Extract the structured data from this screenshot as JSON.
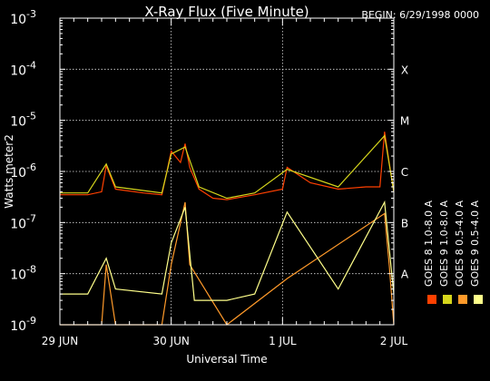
{
  "colors": {
    "background": "#000000",
    "foreground": "#ffffff",
    "goes8_long": "#ff4000",
    "goes8_short": "#ff9a2a",
    "goes9_long": "#d6d61c",
    "goes9_short": "#ffff8a"
  },
  "chart_data": {
    "type": "line",
    "title": "X-Ray Flux (Five Minute)",
    "begin_label": "BEGIN: 6/29/1998 0000",
    "xlabel": "Universal Time",
    "ylabel": "Watts meter2",
    "y_scale": "log",
    "ylim": [
      1e-09,
      0.001
    ],
    "xlim": [
      "1998-06-29 00:00",
      "1998-07-02 00:00"
    ],
    "x_ticks": [
      "29 JUN",
      "30 JUN",
      "1 JUL",
      "2 JUL"
    ],
    "y_ticks": [
      {
        "base": "10",
        "exp": "-9"
      },
      {
        "base": "10",
        "exp": "-8"
      },
      {
        "base": "10",
        "exp": "-7"
      },
      {
        "base": "10",
        "exp": "-6"
      },
      {
        "base": "10",
        "exp": "-5"
      },
      {
        "base": "10",
        "exp": "-4"
      },
      {
        "base": "10",
        "exp": "-3"
      }
    ],
    "flare_classes": [
      "A",
      "B",
      "C",
      "M",
      "X"
    ],
    "grid": true,
    "series": [
      {
        "name": "GOES 8 1.0-8.0 A",
        "color": "#ff4000",
        "x": [
          "1998-06-29 00:00",
          "1998-06-29 06:00",
          "1998-06-29 09:00",
          "1998-06-29 10:00",
          "1998-06-29 12:00",
          "1998-06-29 18:00",
          "1998-06-29 22:00",
          "1998-06-30 00:00",
          "1998-06-30 02:00",
          "1998-06-30 03:00",
          "1998-06-30 04:00",
          "1998-06-30 06:00",
          "1998-06-30 09:00",
          "1998-06-30 12:00",
          "1998-06-30 18:00",
          "1998-07-01 00:00",
          "1998-07-01 01:00",
          "1998-07-01 06:00",
          "1998-07-01 12:00",
          "1998-07-01 18:00",
          "1998-07-01 21:00",
          "1998-07-01 22:00",
          "1998-07-01 23:00",
          "1998-07-02 00:00"
        ],
        "y": [
          3.5e-07,
          3.5e-07,
          4e-07,
          1.3e-06,
          4.5e-07,
          3.8e-07,
          3.5e-07,
          2.5e-06,
          1.5e-06,
          3.5e-06,
          1.2e-06,
          4.5e-07,
          3e-07,
          2.8e-07,
          3.5e-07,
          4.5e-07,
          1.2e-06,
          6e-07,
          4.5e-07,
          5e-07,
          5e-07,
          6e-06,
          1.5e-06,
          4e-07
        ]
      },
      {
        "name": "GOES 8 0.5-4.0 A",
        "color": "#ff9a2a",
        "x": [
          "1998-06-29 00:00",
          "1998-06-29 09:00",
          "1998-06-29 10:00",
          "1998-06-29 12:00",
          "1998-06-29 22:00",
          "1998-06-30 00:00",
          "1998-06-30 03:00",
          "1998-06-30 04:00",
          "1998-06-30 12:00",
          "1998-07-01 01:00",
          "1998-07-01 22:00",
          "1998-07-01 23:00",
          "1998-07-02 00:00"
        ],
        "y": [
          1e-09,
          1e-09,
          1.5e-08,
          1e-09,
          1e-09,
          1.5e-08,
          2.5e-07,
          1.5e-08,
          1e-09,
          8e-09,
          1.5e-07,
          1.5e-08,
          1e-09
        ]
      },
      {
        "name": "GOES 9 1.0-8.0 A",
        "color": "#d6d61c",
        "x": [
          "1998-06-29 00:00",
          "1998-06-29 06:00",
          "1998-06-29 10:00",
          "1998-06-29 12:00",
          "1998-06-29 22:00",
          "1998-06-30 00:00",
          "1998-06-30 03:00",
          "1998-06-30 06:00",
          "1998-06-30 12:00",
          "1998-06-30 18:00",
          "1998-07-01 01:00",
          "1998-07-01 12:00",
          "1998-07-01 22:00",
          "1998-07-02 00:00"
        ],
        "y": [
          3.8e-07,
          3.8e-07,
          1.4e-06,
          5e-07,
          3.8e-07,
          2.2e-06,
          3e-06,
          5e-07,
          3e-07,
          3.8e-07,
          1.1e-06,
          5e-07,
          5e-06,
          4e-07
        ]
      },
      {
        "name": "GOES 9 0.5-4.0 A",
        "color": "#ffff8a",
        "x": [
          "1998-06-29 00:00",
          "1998-06-29 06:00",
          "1998-06-29 10:00",
          "1998-06-29 12:00",
          "1998-06-29 22:00",
          "1998-06-30 00:00",
          "1998-06-30 03:00",
          "1998-06-30 05:00",
          "1998-06-30 12:00",
          "1998-06-30 18:00",
          "1998-07-01 01:00",
          "1998-07-01 12:00",
          "1998-07-01 22:00",
          "1998-07-02 00:00"
        ],
        "y": [
          4e-09,
          4e-09,
          2e-08,
          5e-09,
          4e-09,
          4e-08,
          2e-07,
          3e-09,
          3e-09,
          4e-09,
          1.6e-07,
          5e-09,
          2.5e-07,
          4e-09
        ]
      }
    ]
  }
}
